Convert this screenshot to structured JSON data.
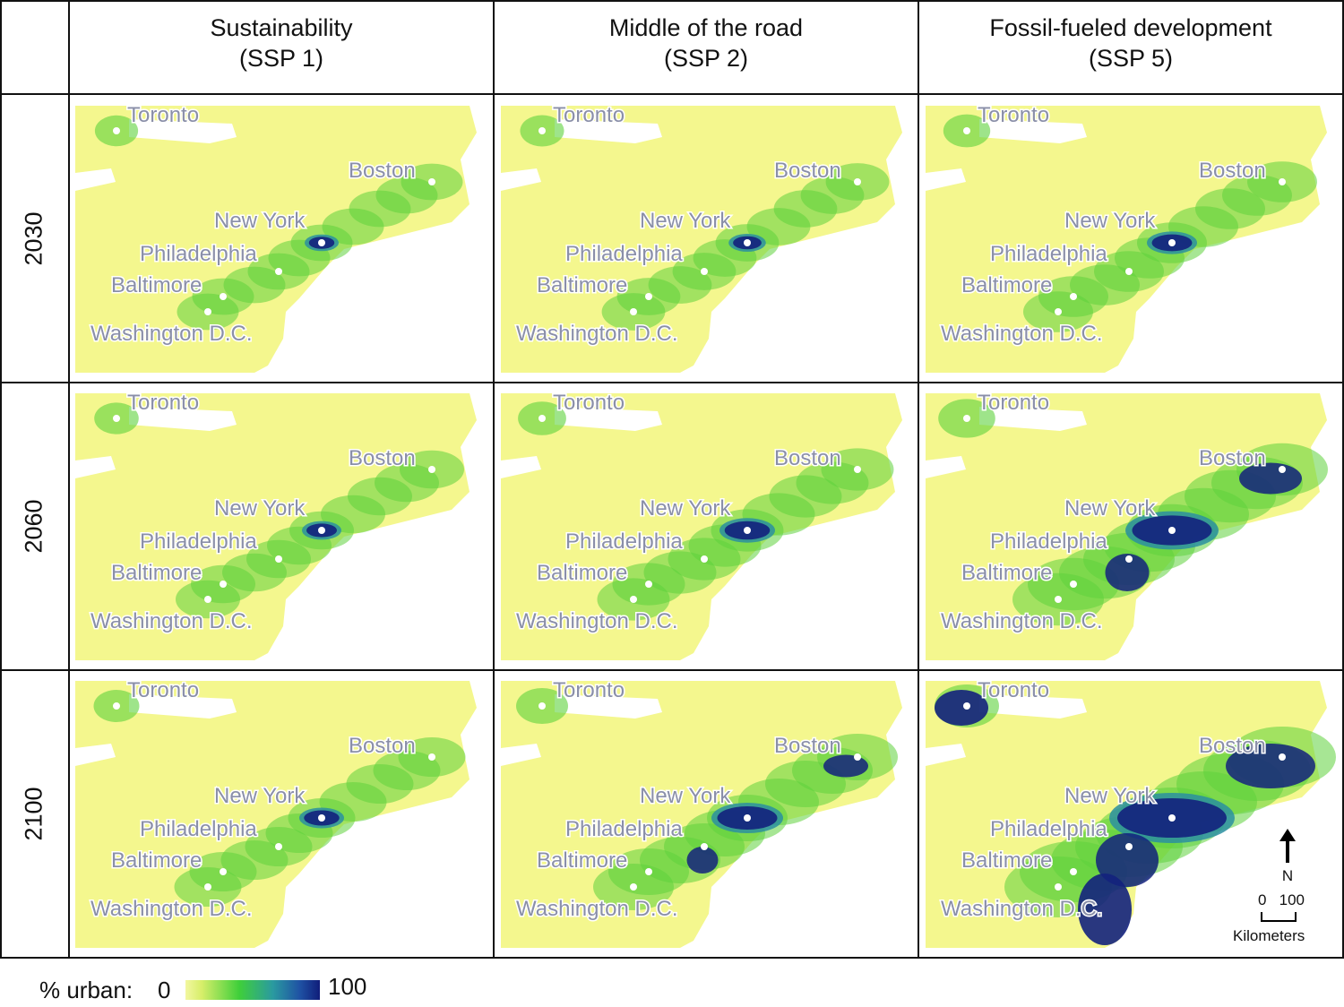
{
  "columns": [
    {
      "title": "Sustainability",
      "subtitle": "(SSP 1)"
    },
    {
      "title": "Middle of the road",
      "subtitle": "(SSP 2)"
    },
    {
      "title": "Fossil-fueled development",
      "subtitle": "(SSP 5)"
    }
  ],
  "rows": [
    "2030",
    "2060",
    "2100"
  ],
  "cities": [
    {
      "name": "Toronto"
    },
    {
      "name": "Boston"
    },
    {
      "name": "New York"
    },
    {
      "name": "Philadelphia"
    },
    {
      "name": "Baltimore"
    },
    {
      "name": "Washington D.C."
    }
  ],
  "urban_intensity_note": "relative urban level per panel (0-1), rows x columns",
  "urban_level": [
    [
      0.15,
      0.18,
      0.3
    ],
    [
      0.2,
      0.35,
      0.7
    ],
    [
      0.25,
      0.5,
      1.0
    ]
  ],
  "legend": {
    "label": "% urban:",
    "min": "0",
    "max": "100"
  },
  "north_arrow": {
    "label": "N"
  },
  "scale_bar": {
    "ticks": "0   100",
    "unit": "Kilometers"
  },
  "colors": {
    "land": "#f4f78e",
    "low": "#5ed23c",
    "mid": "#2a8fa0",
    "high": "#13217d",
    "water": "#ffffff",
    "label": "#8a8fa8"
  }
}
